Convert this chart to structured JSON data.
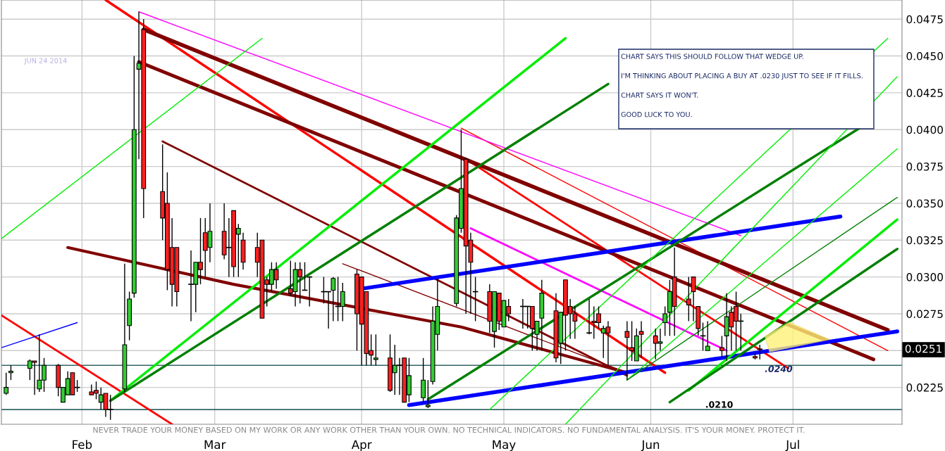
{
  "chart_data": {
    "type": "candlestick",
    "subtitle": "JUN 24 2014",
    "x": [
      "2014-01-16",
      "2014-01-17",
      "2014-01-21",
      "2014-01-22",
      "2014-01-23",
      "2014-01-24",
      "2014-01-27",
      "2014-01-28",
      "2014-01-29",
      "2014-01-30",
      "2014-01-31",
      "2014-02-03",
      "2014-02-04",
      "2014-02-05",
      "2014-02-06",
      "2014-02-07",
      "2014-02-10",
      "2014-02-11",
      "2014-02-12",
      "2014-02-13",
      "2014-02-14",
      "2014-02-18",
      "2014-02-19",
      "2014-02-20",
      "2014-02-21",
      "2014-02-24",
      "2014-02-25",
      "2014-02-26",
      "2014-02-27",
      "2014-02-28",
      "2014-03-03",
      "2014-03-04",
      "2014-03-05",
      "2014-03-06",
      "2014-03-07",
      "2014-03-10",
      "2014-03-11",
      "2014-03-12",
      "2014-03-13",
      "2014-03-14",
      "2014-03-17",
      "2014-03-18",
      "2014-03-19",
      "2014-03-20",
      "2014-03-21",
      "2014-03-24",
      "2014-03-25",
      "2014-03-26",
      "2014-03-27",
      "2014-03-28",
      "2014-03-31",
      "2014-04-01",
      "2014-04-02",
      "2014-04-03",
      "2014-04-04",
      "2014-04-07",
      "2014-04-08",
      "2014-04-09",
      "2014-04-10",
      "2014-04-11",
      "2014-04-14",
      "2014-04-15",
      "2014-04-16",
      "2014-04-17",
      "2014-04-21",
      "2014-04-22",
      "2014-04-23",
      "2014-04-24",
      "2014-04-25",
      "2014-04-28",
      "2014-04-29",
      "2014-04-30",
      "2014-05-01",
      "2014-05-02",
      "2014-05-05",
      "2014-05-06",
      "2014-05-07",
      "2014-05-08",
      "2014-05-09",
      "2014-05-12",
      "2014-05-13",
      "2014-05-14",
      "2014-05-15",
      "2014-05-16",
      "2014-05-19",
      "2014-05-20",
      "2014-05-21",
      "2014-05-22",
      "2014-05-23",
      "2014-05-27",
      "2014-05-28",
      "2014-05-29",
      "2014-05-30",
      "2014-06-02",
      "2014-06-03",
      "2014-06-04",
      "2014-06-05",
      "2014-06-06",
      "2014-06-09",
      "2014-06-10",
      "2014-06-11",
      "2014-06-12",
      "2014-06-13",
      "2014-06-16",
      "2014-06-17",
      "2014-06-18",
      "2014-06-19",
      "2014-06-20",
      "2014-06-23",
      "2014-06-24"
    ],
    "ohlc": [
      [
        0.0221,
        0.0235,
        0.022,
        0.0225
      ],
      [
        0.0235,
        0.024,
        0.023,
        0.0236
      ],
      [
        0.0238,
        0.0244,
        0.023,
        0.0243
      ],
      [
        0.0243,
        0.0243,
        0.022,
        0.0242
      ],
      [
        0.0224,
        0.0261,
        0.0222,
        0.023
      ],
      [
        0.023,
        0.0245,
        0.0222,
        0.024
      ],
      [
        0.024,
        0.0241,
        0.0219,
        0.0225
      ],
      [
        0.0215,
        0.0225,
        0.0215,
        0.0225
      ],
      [
        0.022,
        0.0236,
        0.022,
        0.0231
      ],
      [
        0.0235,
        0.0235,
        0.022,
        0.022
      ],
      [
        0.0225,
        0.023,
        0.0222,
        0.0225
      ],
      [
        0.0222,
        0.0227,
        0.022,
        0.022
      ],
      [
        0.0223,
        0.0229,
        0.0217,
        0.0221
      ],
      [
        0.0215,
        0.0225,
        0.021,
        0.022
      ],
      [
        0.0221,
        0.0221,
        0.0205,
        0.021
      ],
      [
        0.021,
        0.022,
        0.0203,
        0.021
      ],
      [
        0.0224,
        0.0309,
        0.0222,
        0.0254
      ],
      [
        0.0267,
        0.029,
        0.0257,
        0.0285
      ],
      [
        0.0289,
        0.045,
        0.0286,
        0.04
      ],
      [
        0.0441,
        0.048,
        0.038,
        0.0445
      ],
      [
        0.0468,
        0.0475,
        0.034,
        0.036
      ],
      [
        0.0358,
        0.039,
        0.0325,
        0.034
      ],
      [
        0.035,
        0.0371,
        0.0291,
        0.0305
      ],
      [
        0.032,
        0.034,
        0.028,
        0.0295
      ],
      [
        0.032,
        0.032,
        0.028,
        0.029
      ],
      [
        0.0295,
        0.0318,
        0.027,
        0.0295
      ],
      [
        0.0295,
        0.031,
        0.0276,
        0.031
      ],
      [
        0.031,
        0.034,
        0.0295,
        0.0305
      ],
      [
        0.033,
        0.034,
        0.03,
        0.0318
      ],
      [
        0.032,
        0.035,
        0.031,
        0.0331
      ],
      [
        0.0331,
        0.035,
        0.0312,
        0.0315
      ],
      [
        0.032,
        0.034,
        0.03,
        0.032
      ],
      [
        0.0345,
        0.0345,
        0.03,
        0.0307
      ],
      [
        0.0329,
        0.0336,
        0.03,
        0.0333
      ],
      [
        0.0325,
        0.033,
        0.0305,
        0.031
      ],
      [
        0.032,
        0.033,
        0.03,
        0.031
      ],
      [
        0.0325,
        0.0325,
        0.0272,
        0.0272
      ],
      [
        0.0298,
        0.03,
        0.028,
        0.0295
      ],
      [
        0.0295,
        0.031,
        0.029,
        0.0305
      ],
      [
        0.0305,
        0.031,
        0.0292,
        0.0298
      ],
      [
        0.0292,
        0.0311,
        0.0287,
        0.0289
      ],
      [
        0.029,
        0.031,
        0.028,
        0.0305
      ],
      [
        0.0305,
        0.031,
        0.0282,
        0.03
      ],
      [
        0.0291,
        0.031,
        0.0291,
        0.0291
      ],
      [
        0.03,
        0.03,
        0.028,
        0.03
      ],
      [
        0.029,
        0.03,
        0.0282,
        0.029
      ],
      [
        0.029,
        0.029,
        0.0265,
        0.029
      ],
      [
        0.0291,
        0.03,
        0.027,
        0.0299
      ],
      [
        0.028,
        0.03,
        0.027,
        0.028
      ],
      [
        0.028,
        0.0296,
        0.027,
        0.029
      ],
      [
        0.0302,
        0.0305,
        0.025,
        0.0275
      ],
      [
        0.03,
        0.03,
        0.024,
        0.0268
      ],
      [
        0.029,
        0.029,
        0.024,
        0.0248
      ],
      [
        0.025,
        0.0261,
        0.024,
        0.0247
      ],
      [
        0.0244,
        0.0261,
        0.024,
        0.0245
      ],
      [
        0.0245,
        0.0261,
        0.0222,
        0.0223
      ],
      [
        0.0235,
        0.0254,
        0.022,
        0.024
      ],
      [
        0.024,
        0.0245,
        0.022,
        0.024
      ],
      [
        0.0245,
        0.0245,
        0.0215,
        0.0215
      ],
      [
        0.022,
        0.0245,
        0.0215,
        0.0233
      ],
      [
        0.0218,
        0.0245,
        0.0215,
        0.023
      ],
      [
        0.0212,
        0.023,
        0.0211,
        0.0213
      ],
      [
        0.0229,
        0.028,
        0.0227,
        0.027
      ],
      [
        0.0261,
        0.0299,
        0.025,
        0.028
      ],
      [
        0.0282,
        0.0342,
        0.028,
        0.034
      ],
      [
        0.0333,
        0.04,
        0.033,
        0.036
      ],
      [
        0.038,
        0.0381,
        0.0275,
        0.0321
      ],
      [
        0.0325,
        0.033,
        0.0275,
        0.031
      ],
      [
        0.029,
        0.03,
        0.027,
        0.029
      ],
      [
        0.029,
        0.0295,
        0.0262,
        0.027
      ],
      [
        0.0263,
        0.029,
        0.0252,
        0.029
      ],
      [
        0.0289,
        0.0289,
        0.0264,
        0.027
      ],
      [
        0.0266,
        0.0284,
        0.0266,
        0.0284
      ],
      [
        0.028,
        0.0285,
        0.027,
        0.0275
      ],
      [
        0.028,
        0.0285,
        0.0265,
        0.028
      ],
      [
        0.028,
        0.028,
        0.0265,
        0.028
      ],
      [
        0.028,
        0.028,
        0.025,
        0.0265
      ],
      [
        0.0261,
        0.027,
        0.025,
        0.027
      ],
      [
        0.0272,
        0.0298,
        0.025,
        0.0289
      ],
      [
        0.0277,
        0.0289,
        0.0242,
        0.0245
      ],
      [
        0.0255,
        0.0276,
        0.0241,
        0.0276
      ],
      [
        0.0298,
        0.0298,
        0.025,
        0.0274
      ],
      [
        0.028,
        0.0285,
        0.0258,
        0.0275
      ],
      [
        0.0275,
        0.028,
        0.0258,
        0.027
      ],
      [
        0.0262,
        0.0285,
        0.0261,
        0.0262
      ],
      [
        0.027,
        0.028,
        0.0258,
        0.0269
      ],
      [
        0.0275,
        0.028,
        0.0265,
        0.0269
      ],
      [
        0.0262,
        0.0267,
        0.0245,
        0.0265
      ],
      [
        0.0266,
        0.027,
        0.024,
        0.0262
      ],
      [
        0.0263,
        0.027,
        0.023,
        0.0259
      ],
      [
        0.0252,
        0.027,
        0.0243,
        0.025
      ],
      [
        0.0243,
        0.0265,
        0.0243,
        0.026
      ],
      [
        0.0263,
        0.027,
        0.0245,
        0.0261
      ],
      [
        0.026,
        0.0265,
        0.0244,
        0.0255
      ],
      [
        0.0255,
        0.0265,
        0.025,
        0.0256
      ],
      [
        0.0269,
        0.028,
        0.026,
        0.0275
      ],
      [
        0.0276,
        0.0298,
        0.026,
        0.029
      ],
      [
        0.03,
        0.032,
        0.026,
        0.028
      ],
      [
        0.0285,
        0.03,
        0.027,
        0.0281
      ],
      [
        0.03,
        0.03,
        0.027,
        0.029
      ],
      [
        0.028,
        0.028,
        0.026,
        0.0265
      ],
      [
        0.026,
        0.0269,
        0.025,
        0.026
      ],
      [
        0.025,
        0.027,
        0.025,
        0.0253
      ],
      [
        0.0252,
        0.026,
        0.0246,
        0.025
      ],
      [
        0.026,
        0.0289,
        0.0243,
        0.0273
      ],
      [
        0.0276,
        0.028,
        0.025,
        0.0266
      ],
      [
        0.028,
        0.029,
        0.025,
        0.027
      ],
      [
        0.027,
        0.0275,
        0.025,
        0.027
      ],
      [
        0.0246,
        0.0248,
        0.0244,
        0.0245
      ],
      [
        0.0251,
        0.0254,
        0.0244,
        0.0251
      ]
    ],
    "colors": [
      "#33cc33",
      "#33cc33",
      "#33cc33",
      "#ff2020",
      "#33cc33",
      "#33cc33",
      "#ff2020",
      "#33cc33",
      "#33cc33",
      "#ff2020",
      "#000000",
      "#ff2020",
      "#ff2020",
      "#33cc33",
      "#ff2020",
      "#000000",
      "#33cc33",
      "#33cc33",
      "#33cc33",
      "#33cc33",
      "#ff2020",
      "#ff2020",
      "#ff2020",
      "#ff2020",
      "#ff2020",
      "#000000",
      "#33cc33",
      "#ff2020",
      "#ff2020",
      "#33cc33",
      "#ff2020",
      "#000000",
      "#ff2020",
      "#33cc33",
      "#ff2020",
      "#ff2020",
      "#ff2020",
      "#ff2020",
      "#33cc33",
      "#ff2020",
      "#ff2020",
      "#33cc33",
      "#ff2020",
      "#000000",
      "#000000",
      "#000000",
      "#000000",
      "#33cc33",
      "#000000",
      "#33cc33",
      "#ff2020",
      "#ff2020",
      "#ff2020",
      "#ff2020",
      "#33cc33",
      "#ff2020",
      "#33cc33",
      "#000000",
      "#ff2020",
      "#33cc33",
      "#33cc33",
      "#33cc33",
      "#33cc33",
      "#33cc33",
      "#33cc33",
      "#33cc33",
      "#ff2020",
      "#ff2020",
      "#000000",
      "#ff2020",
      "#33cc33",
      "#ff2020",
      "#33cc33",
      "#ff2020",
      "#000000",
      "#000000",
      "#ff2020",
      "#33cc33",
      "#33cc33",
      "#ff2020",
      "#33cc33",
      "#ff2020",
      "#ff2020",
      "#ff2020",
      "#000000",
      "#ff2020",
      "#ff2020",
      "#33cc33",
      "#ff2020",
      "#ff2020",
      "#ff2020",
      "#33cc33",
      "#ff2020",
      "#ff2020",
      "#33cc33",
      "#33cc33",
      "#33cc33",
      "#ff2020",
      "#ff2020",
      "#ff2020",
      "#ff2020",
      "#000000",
      "#33cc33",
      "#ff2020",
      "#33cc33",
      "#ff2020",
      "#ff2020",
      "#000000",
      "#ff2020",
      "#000000"
    ],
    "series": [
      {
        "type": "line",
        "color": "#ff0000",
        "x": [
          "2014-02-06",
          "2014-06-04"
        ],
        "values": [
          0.0488,
          0.0235
        ]
      },
      {
        "type": "line",
        "color": "#ff0000",
        "x": [
          "2014-04-23",
          "2014-06-30"
        ],
        "values": [
          0.038,
          0.0238
        ]
      },
      {
        "type": "line",
        "color": "#ff0000",
        "x": [
          "2014-04-22",
          "2014-07-21"
        ],
        "values": [
          0.0401,
          0.025
        ]
      },
      {
        "type": "line",
        "color": "#ff0000",
        "x": [
          "2014-01-15",
          "2014-02-20"
        ],
        "values": [
          0.0274,
          0.02
        ]
      },
      {
        "type": "line",
        "color": "#ff00ff",
        "x": [
          "2014-02-13",
          "2014-06-20"
        ],
        "values": [
          0.048,
          0.0328
        ]
      },
      {
        "type": "line",
        "color": "#ff00ff",
        "x": [
          "2014-04-24",
          "2014-06-17"
        ],
        "values": [
          0.0333,
          0.025
        ]
      },
      {
        "type": "line",
        "color": "#800000",
        "x": [
          "2014-02-14",
          "2014-07-21"
        ],
        "values": [
          0.0468,
          0.0264
        ]
      },
      {
        "type": "line",
        "color": "#800000",
        "x": [
          "2014-02-13",
          "2014-07-18"
        ],
        "values": [
          0.0446,
          0.0244
        ]
      },
      {
        "type": "line",
        "color": "#800000",
        "x": [
          "2014-02-18",
          "2014-05-27"
        ],
        "values": [
          0.0392,
          0.0233
        ]
      },
      {
        "type": "line",
        "color": "#800000",
        "x": [
          "2014-01-29",
          "2014-03-05",
          "2014-04-22",
          "2014-05-27"
        ],
        "values": [
          0.032,
          0.0295,
          0.0266,
          0.0235
        ]
      },
      {
        "type": "line",
        "color": "#800000",
        "x": [
          "2014-03-28",
          "2014-05-27"
        ],
        "values": [
          0.0309,
          0.0235
        ]
      },
      {
        "type": "line",
        "color": "#0000ff",
        "x": [
          "2014-04-01",
          "2014-07-11"
        ],
        "values": [
          0.0292,
          0.0341
        ]
      },
      {
        "type": "line",
        "color": "#0000ff",
        "x": [
          "2014-04-11",
          "2014-07-23"
        ],
        "values": [
          0.0213,
          0.0263
        ]
      },
      {
        "type": "line",
        "color": "#0000ff",
        "x": [
          "2014-01-15",
          "2014-01-31"
        ],
        "values": [
          0.0252,
          0.0269
        ]
      },
      {
        "type": "line",
        "color": "#00ee00",
        "x": [
          "2014-02-07",
          "2014-05-14"
        ],
        "values": [
          0.0216,
          0.0462
        ]
      },
      {
        "type": "line",
        "color": "#008000",
        "x": [
          "2014-02-07",
          "2014-05-23"
        ],
        "values": [
          0.0216,
          0.0431
        ]
      },
      {
        "type": "line",
        "color": "#00ee00",
        "x": [
          "2014-01-15",
          "2014-03-11"
        ],
        "values": [
          0.0326,
          0.0462
        ]
      },
      {
        "type": "line",
        "color": "#008000",
        "x": [
          "2014-04-15",
          "2014-07-15"
        ],
        "values": [
          0.0217,
          0.0401
        ]
      },
      {
        "type": "line",
        "color": "#00ee00",
        "x": [
          "2014-04-28",
          "2014-07-21"
        ],
        "values": [
          0.021,
          0.0462
        ]
      },
      {
        "type": "line",
        "color": "#00ee00",
        "x": [
          "2014-05-14",
          "2014-07-23"
        ],
        "values": [
          0.02,
          0.0436
        ]
      },
      {
        "type": "line",
        "color": "#00ee00",
        "x": [
          "2014-05-27",
          "2014-07-23"
        ],
        "values": [
          0.023,
          0.0387
        ]
      },
      {
        "type": "line",
        "color": "#008000",
        "x": [
          "2014-05-27",
          "2014-07-23"
        ],
        "values": [
          0.023,
          0.0354
        ]
      },
      {
        "type": "line",
        "color": "#00ee00",
        "x": [
          "2014-06-09",
          "2014-07-23"
        ],
        "values": [
          0.0223,
          0.0339
        ]
      },
      {
        "type": "line",
        "color": "#008000",
        "x": [
          "2014-06-05",
          "2014-07-23"
        ],
        "values": [
          0.0215,
          0.0319
        ]
      }
    ],
    "ref_lines": [
      {
        "axis": "y",
        "value": 0.024,
        "label": ".0240",
        "color": "#336666"
      },
      {
        "axis": "y",
        "value": 0.021,
        "label": ".0210",
        "color": "#336666"
      }
    ],
    "annotations": [
      "CHART SAYS THIS SHOULD FOLLOW THAT WEDGE UP.",
      "I'M THINKING ABOUT PLACING A BUY AT .0230 JUST TO SEE IF IT FILLS.",
      "CHART SAYS IT WON'T.",
      "GOOD LUCK TO YOU.",
      "NEVER TRADE YOUR MONEY BASED ON MY WORK OR ANY WORK OTHER THAN YOUR OWN. NO TECHNICAL INDICATORS. NO FUNDAMENTAL ANALYSIS. IT'S YOUR MONEY. PROTECT IT.",
      "0.0251"
    ],
    "xlim": [
      "2014-01-15",
      "2014-07-24"
    ],
    "ylim": [
      0.02,
      0.0488
    ],
    "xticks": [
      {
        "value": "2014-02-01",
        "label": "Feb"
      },
      {
        "value": "2014-03-01",
        "label": "Mar"
      },
      {
        "value": "2014-04-01",
        "label": "Apr"
      },
      {
        "value": "2014-05-01",
        "label": "May"
      },
      {
        "value": "2014-06-01",
        "label": "Jun"
      },
      {
        "value": "2014-07-01",
        "label": "Jul"
      }
    ],
    "yticks": [
      {
        "value": 0.0225,
        "label": "0.0225"
      },
      {
        "value": 0.025,
        "label": null
      },
      {
        "value": 0.0275,
        "label": "0.0275"
      },
      {
        "value": 0.03,
        "label": "0.0300"
      },
      {
        "value": 0.0325,
        "label": "0.0325"
      },
      {
        "value": 0.035,
        "label": "0.0350"
      },
      {
        "value": 0.0375,
        "label": "0.0375"
      },
      {
        "value": 0.04,
        "label": "0.0400"
      },
      {
        "value": 0.0425,
        "label": "0.0425"
      },
      {
        "value": 0.045,
        "label": "0.0450"
      },
      {
        "value": 0.0475,
        "label": "0.0475"
      }
    ],
    "grid": true
  }
}
